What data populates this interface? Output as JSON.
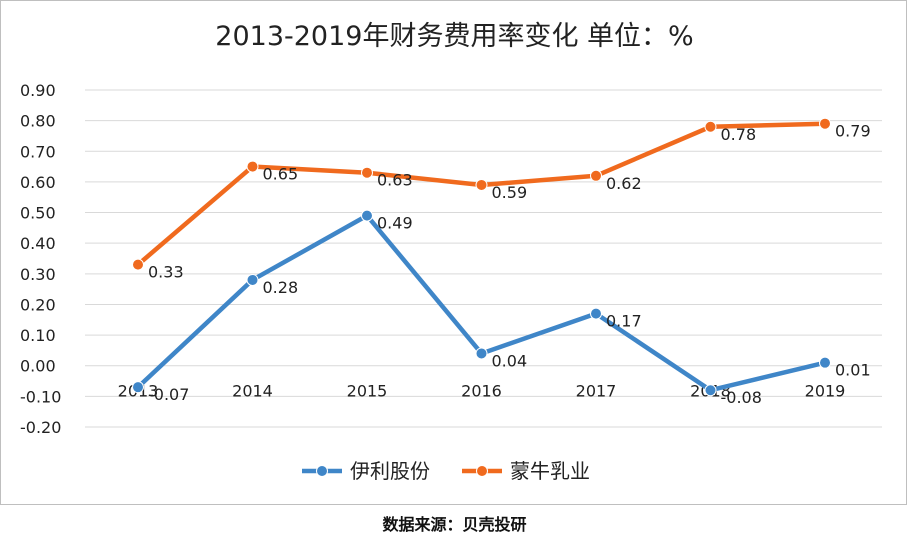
{
  "chart_data": {
    "type": "line",
    "title": "2013-2019年财务费用率变化 单位：%",
    "categories": [
      "2013",
      "2014",
      "2015",
      "2016",
      "2017",
      "2018",
      "2019"
    ],
    "ylim": [
      -0.2,
      0.9
    ],
    "y_ticks": [
      "0.90",
      "0.80",
      "0.70",
      "0.60",
      "0.50",
      "0.40",
      "0.30",
      "0.20",
      "0.10",
      "0.00",
      "-0.10",
      "-0.20"
    ],
    "grid": true,
    "legend_position": "bottom",
    "series": [
      {
        "name": "伊利股份",
        "color": "#3f86c8",
        "values": [
          -0.07,
          0.28,
          0.49,
          0.04,
          0.17,
          -0.08,
          0.01
        ],
        "labels": [
          "-0.07",
          "0.28",
          "0.49",
          "0.04",
          "0.17",
          "-0.08",
          "0.01"
        ]
      },
      {
        "name": "蒙牛乳业",
        "color": "#f06a1e",
        "values": [
          0.33,
          0.65,
          0.63,
          0.59,
          0.62,
          0.78,
          0.79
        ],
        "labels": [
          "0.33",
          "0.65",
          "0.63",
          "0.59",
          "0.62",
          "0.78",
          "0.79"
        ]
      }
    ]
  },
  "source_text": "数据来源：贝壳投研"
}
